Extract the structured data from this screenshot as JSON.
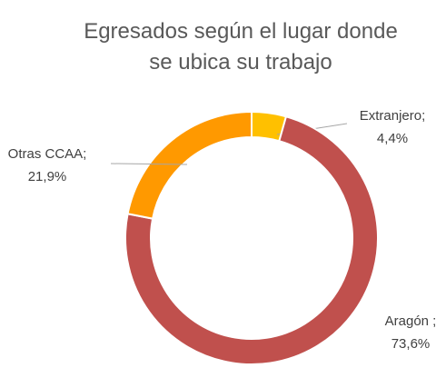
{
  "chart_data": {
    "type": "donut",
    "title": "Egresados según el lugar donde se ubica su trabajo",
    "categories": [
      "Extranjero;",
      "Aragón ;",
      "Otras CCAA;"
    ],
    "values": [
      4.4,
      73.6,
      21.9
    ],
    "value_labels": [
      "4,4%",
      "73,6%",
      "21,9%"
    ],
    "colors": [
      "#ffc000",
      "#c0504d",
      "#ff9900"
    ]
  }
}
